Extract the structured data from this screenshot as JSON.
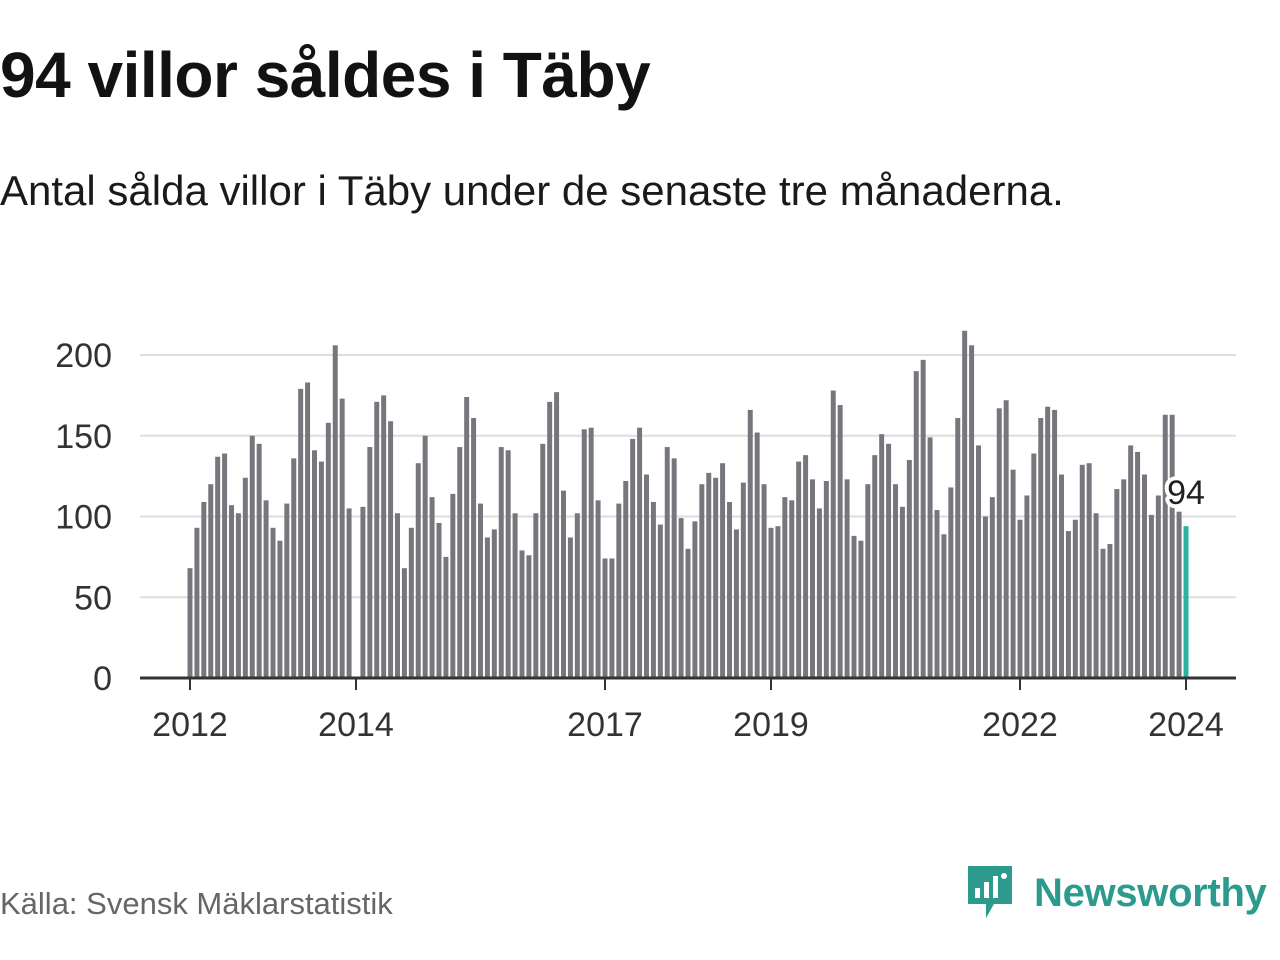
{
  "header": {
    "title": "94 villor såldes i Täby",
    "subtitle": "Antal sålda villor i Täby under de senaste tre månaderna."
  },
  "footer": {
    "source": "Källa: Svensk Mäklarstatistik",
    "brand": "Newsworthy"
  },
  "colors": {
    "bar": "#77767c",
    "highlight": "#2ab3a1",
    "grid": "#dddddd",
    "axis": "#333333",
    "brand": "#2c9b8e"
  },
  "chart_data": {
    "type": "bar",
    "title": "94 villor såldes i Täby",
    "xlabel": "",
    "ylabel": "",
    "ylim": [
      0,
      215
    ],
    "yticks": [
      0,
      50,
      100,
      150,
      200
    ],
    "xticks": [
      {
        "label": "2012",
        "index": 0
      },
      {
        "label": "2014",
        "index": 24
      },
      {
        "label": "2017",
        "index": 60
      },
      {
        "label": "2019",
        "index": 84
      },
      {
        "label": "2022",
        "index": 120
      },
      {
        "label": "2024",
        "index": 144
      }
    ],
    "period_start": "2012-01",
    "period_end": "2024-01",
    "annotation": {
      "label": "94",
      "index": 144,
      "value": 94
    },
    "values": [
      68,
      93,
      109,
      120,
      137,
      139,
      107,
      102,
      124,
      150,
      145,
      110,
      93,
      85,
      108,
      136,
      179,
      183,
      141,
      134,
      158,
      206,
      173,
      105,
      null,
      106,
      143,
      171,
      175,
      159,
      102,
      68,
      93,
      133,
      150,
      112,
      96,
      75,
      114,
      143,
      174,
      161,
      108,
      87,
      92,
      143,
      141,
      102,
      79,
      76,
      102,
      145,
      171,
      177,
      116,
      87,
      102,
      154,
      155,
      110,
      74,
      74,
      108,
      122,
      148,
      155,
      126,
      109,
      95,
      143,
      136,
      99,
      80,
      97,
      120,
      127,
      124,
      133,
      109,
      92,
      121,
      166,
      152,
      120,
      93,
      94,
      112,
      110,
      134,
      138,
      123,
      105,
      122,
      178,
      169,
      123,
      88,
      85,
      120,
      138,
      151,
      145,
      120,
      106,
      135,
      190,
      197,
      149,
      104,
      89,
      118,
      161,
      215,
      206,
      144,
      100,
      112,
      167,
      172,
      129,
      98,
      113,
      139,
      161,
      168,
      166,
      126,
      91,
      98,
      132,
      133,
      102,
      80,
      83,
      117,
      123,
      144,
      140,
      126,
      101,
      113,
      163,
      163,
      103,
      94
    ]
  }
}
